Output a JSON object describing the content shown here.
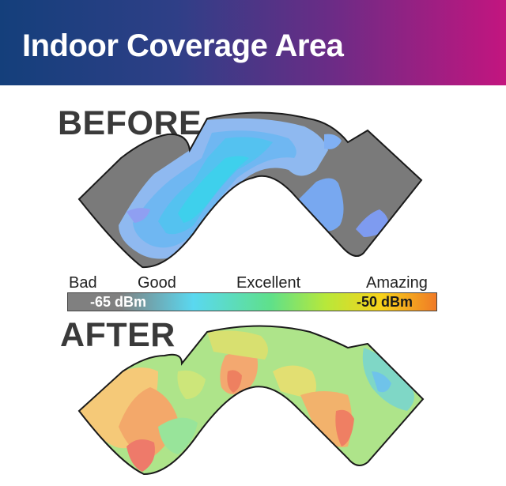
{
  "title": "Indoor Coverage Area",
  "before_label": "BEFORE",
  "after_label": "AFTER",
  "legend": {
    "levels": [
      "Bad",
      "Good",
      "Excellent",
      "Amazing"
    ],
    "low_value": "-65 dBm",
    "high_value": "-50 dBm",
    "colors": [
      "#808080",
      "#5ad8f0",
      "#5fe08a",
      "#b8e83a",
      "#f7d21a",
      "#f07a26"
    ]
  }
}
